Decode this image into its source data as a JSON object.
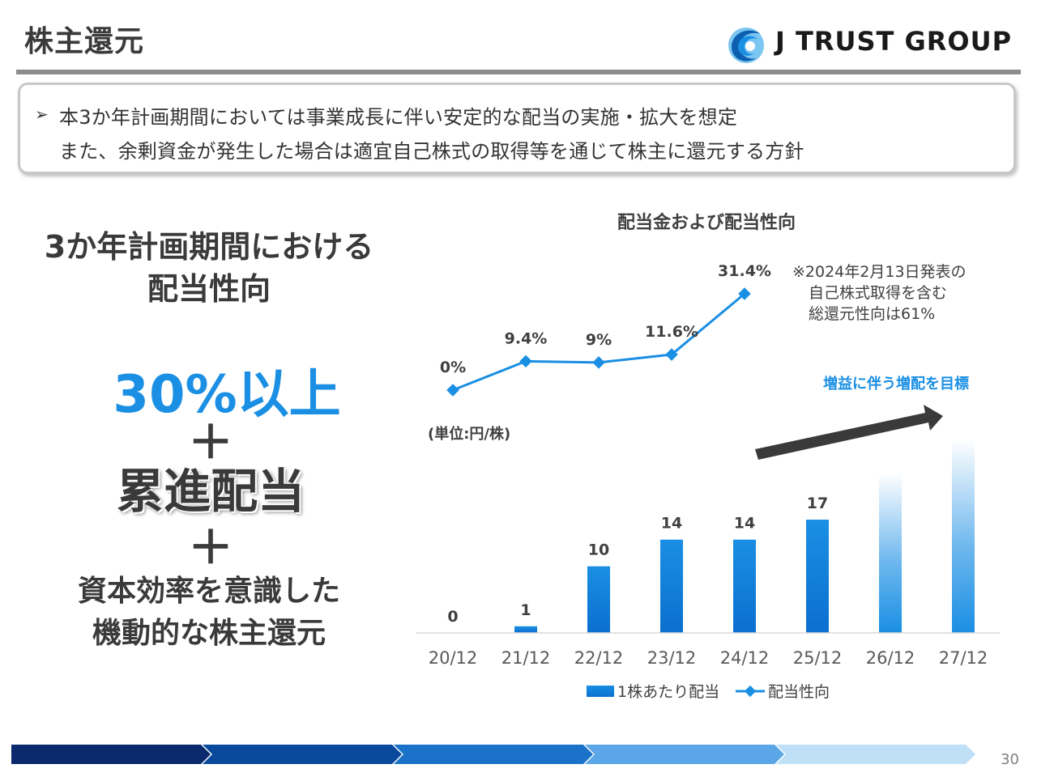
{
  "page": {
    "title": "株主還元",
    "page_number": "30"
  },
  "logo": {
    "text": "J TRUST GROUP",
    "mark_colors": [
      "#1a8fe3",
      "#0b5fae",
      "#7cc6f2"
    ]
  },
  "policy": {
    "bullet": "➢",
    "line1": "本3か年計画期間においては事業成長に伴い安定的な配当の実施・拡大を想定",
    "line2": "また、余剰資金が発生した場合は適宜自己株式の取得等を通じて株主に還元する方針"
  },
  "left_panel": {
    "heading_line1": "3か年計画期間における",
    "heading_line2": "配当性向",
    "target": "30%以上",
    "plus": "＋",
    "progressive": "累進配当",
    "foot_line1": "資本効率を意識した",
    "foot_line2": "機動的な株主還元"
  },
  "chart_data": {
    "type": "bar",
    "title": "配当金および配当性向",
    "unit_label": "(単位:円/株)",
    "categories": [
      "20/12",
      "21/12",
      "22/12",
      "23/12",
      "24/12",
      "25/12",
      "26/12",
      "27/12"
    ],
    "series": [
      {
        "name": "1株あたり配当",
        "kind": "bar",
        "values": [
          0,
          1,
          10,
          14,
          14,
          17,
          null,
          null
        ],
        "labels": [
          "0",
          "1",
          "10",
          "14",
          "14",
          "17",
          "",
          ""
        ],
        "color": "#1a8fe3"
      },
      {
        "name": "配当性向",
        "kind": "line",
        "values": [
          0,
          9.4,
          9,
          11.6,
          31.4,
          null,
          null,
          null
        ],
        "labels": [
          "0%",
          "9.4%",
          "9%",
          "11.6%",
          "31.4%",
          "",
          "",
          ""
        ],
        "color": "#1a8fe3"
      }
    ],
    "projected_bars": [
      {
        "category": "26/12",
        "value": 24
      },
      {
        "category": "27/12",
        "value": 29
      }
    ],
    "bar_ylim": [
      0,
      30
    ],
    "line_ylim": [
      0,
      35
    ],
    "annotation_note": [
      "※2024年2月13日発表の",
      "自己株式取得を含む",
      "総還元性向は61%"
    ],
    "trend_label": "増益に伴う増配を目標",
    "legend_position": "bottom",
    "grid": false,
    "colors": {
      "bar": "#1a8fe3",
      "bar_dark": "#0b6fd0",
      "line": "#1a8fe3",
      "arrow": "#3a3a3a",
      "trend_text": "#1a8fe3"
    }
  },
  "footer": {
    "band_colors": [
      "#0b2a6e",
      "#0a4a9c",
      "#1a73c9",
      "#5aa6e6",
      "#bfe0f7"
    ]
  }
}
